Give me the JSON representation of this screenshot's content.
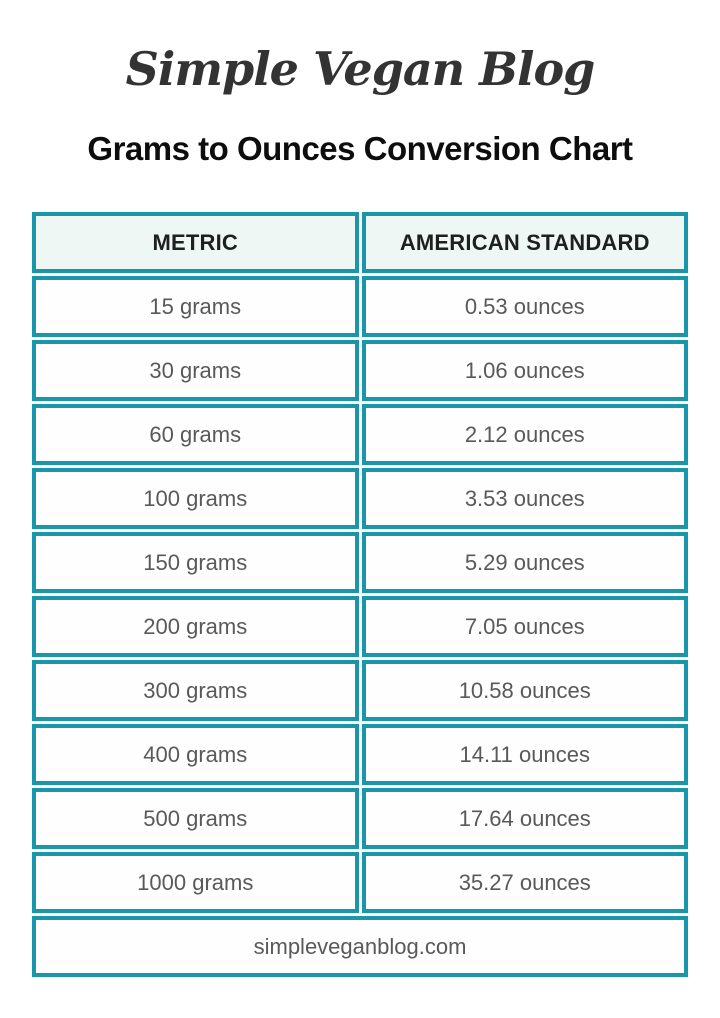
{
  "page": {
    "logo_text": "Simple Vegan Blog",
    "title": "Grams to Ounces Conversion Chart",
    "footer_url": "simpleveganblog.com"
  },
  "colors": {
    "table_border_teal": "#1b95a9",
    "header_cell_bg": "#eef7f4",
    "data_cell_bg": "#fefefe",
    "data_text_gray": "#58595b",
    "header_text": "#1e1f21",
    "title_text": "#0d0d0d"
  },
  "table": {
    "headers": [
      "METRIC",
      "AMERICAN STANDARD"
    ],
    "rows": [
      {
        "metric": "15 grams",
        "standard": "0.53 ounces"
      },
      {
        "metric": "30 grams",
        "standard": "1.06 ounces"
      },
      {
        "metric": "60 grams",
        "standard": "2.12 ounces"
      },
      {
        "metric": "100 grams",
        "standard": "3.53 ounces"
      },
      {
        "metric": "150 grams",
        "standard": "5.29 ounces"
      },
      {
        "metric": "200 grams",
        "standard": "7.05 ounces"
      },
      {
        "metric": "300 grams",
        "standard": "10.58 ounces"
      },
      {
        "metric": "400 grams",
        "standard": "14.11 ounces"
      },
      {
        "metric": "500 grams",
        "standard": "17.64 ounces"
      },
      {
        "metric": "1000 grams",
        "standard": "35.27 ounces"
      }
    ]
  },
  "chart_data": {
    "type": "table",
    "title": "Grams to Ounces Conversion Chart",
    "columns": [
      "METRIC",
      "AMERICAN STANDARD"
    ],
    "grams": [
      15,
      30,
      60,
      100,
      150,
      200,
      300,
      400,
      500,
      1000
    ],
    "ounces": [
      0.53,
      1.06,
      2.12,
      3.53,
      5.29,
      7.05,
      10.58,
      14.11,
      17.64,
      35.27
    ],
    "source": "simpleveganblog.com"
  }
}
